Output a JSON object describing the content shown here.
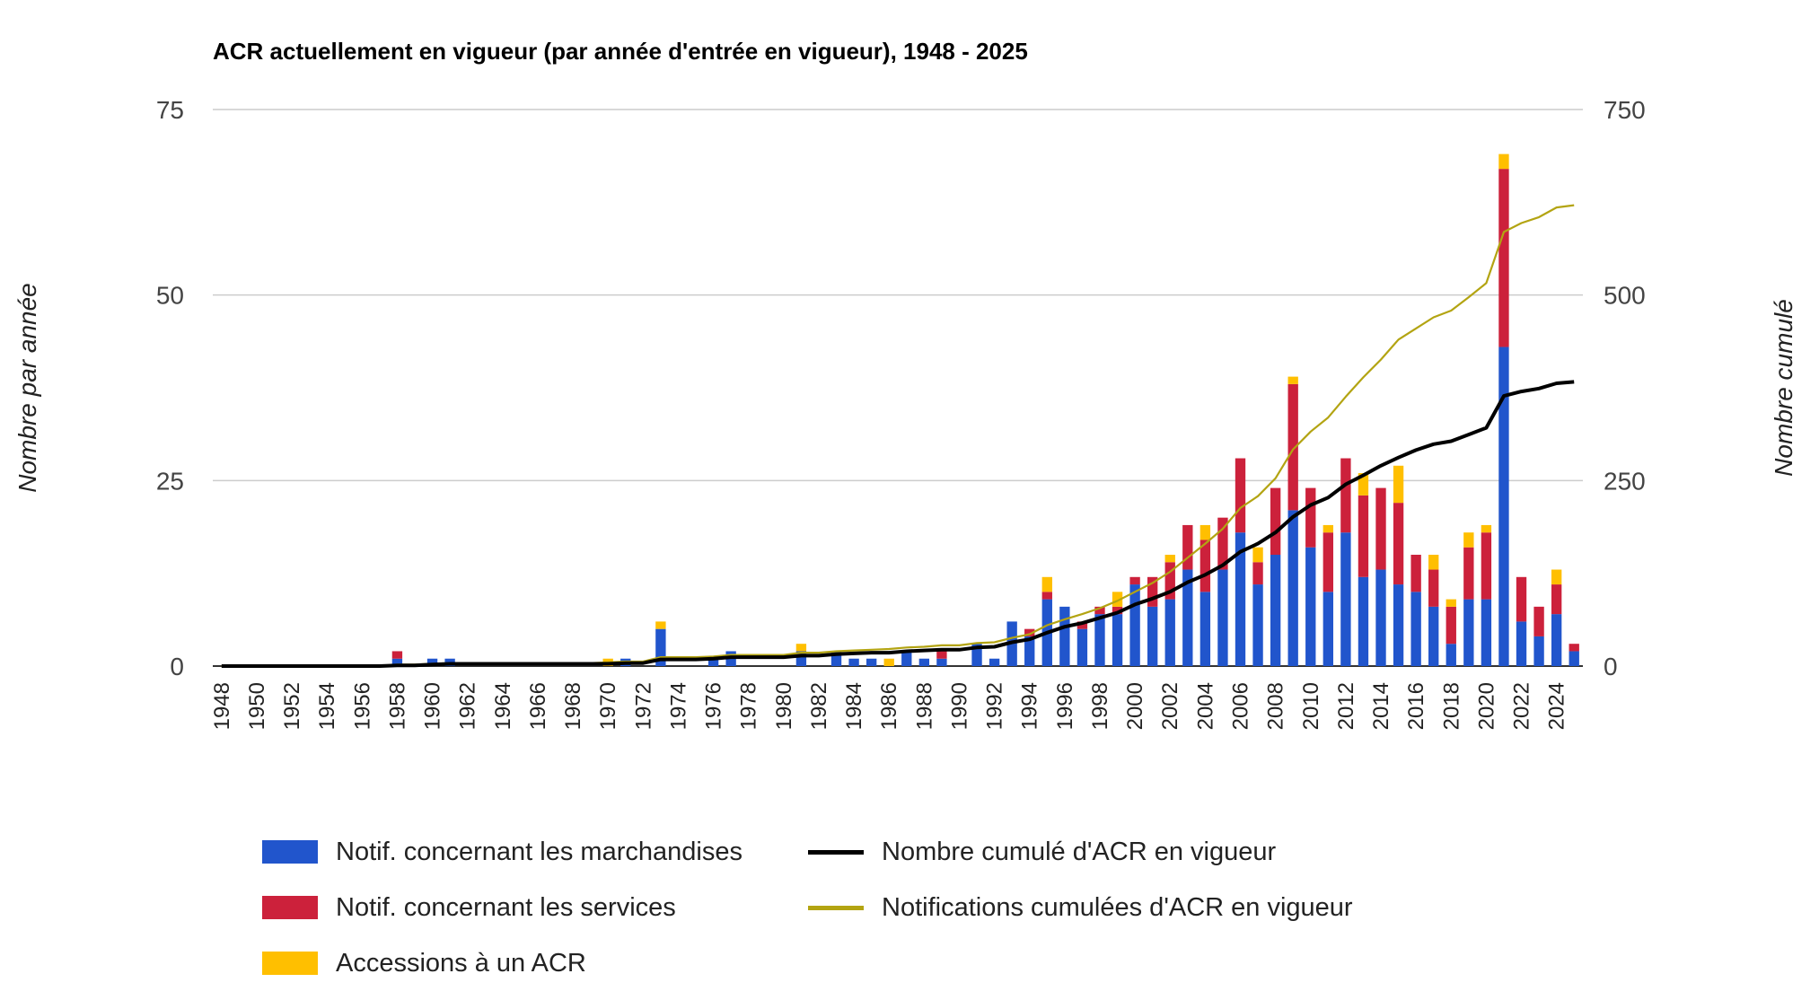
{
  "colors": {
    "goods": "#2155cc",
    "services": "#cc213b",
    "accessions": "#ffbf00",
    "cumulative_rta": "#000000",
    "cumulative_notifications": "#b3a412",
    "grid": "#cccccc"
  },
  "chart_data": {
    "type": "bar",
    "stacked": true,
    "title": "ACR actuellement en vigueur (par année d'entrée en vigueur), 1948 - 2025",
    "ylabel_left": "Nombre par année",
    "ylabel_right": "Nombre cumulé",
    "ylim_left": [
      0,
      75
    ],
    "ylim_right": [
      0,
      750
    ],
    "yticks_left": [
      "0",
      "25",
      "50",
      "75"
    ],
    "yticks_right": [
      "0",
      "250",
      "500",
      "750"
    ],
    "grid": true,
    "legend_position": "bottom",
    "categories": [
      "1948",
      "1949",
      "1950",
      "1951",
      "1952",
      "1953",
      "1954",
      "1955",
      "1956",
      "1957",
      "1958",
      "1959",
      "1960",
      "1961",
      "1962",
      "1963",
      "1964",
      "1965",
      "1966",
      "1967",
      "1968",
      "1969",
      "1970",
      "1971",
      "1972",
      "1973",
      "1974",
      "1975",
      "1976",
      "1977",
      "1978",
      "1979",
      "1980",
      "1981",
      "1982",
      "1983",
      "1984",
      "1985",
      "1986",
      "1987",
      "1988",
      "1989",
      "1990",
      "1991",
      "1992",
      "1993",
      "1994",
      "1995",
      "1996",
      "1997",
      "1998",
      "1999",
      "2000",
      "2001",
      "2002",
      "2003",
      "2004",
      "2005",
      "2006",
      "2007",
      "2008",
      "2009",
      "2010",
      "2011",
      "2012",
      "2013",
      "2014",
      "2015",
      "2016",
      "2017",
      "2018",
      "2019",
      "2020",
      "2021",
      "2022",
      "2023",
      "2024",
      "2025"
    ],
    "xtick_labels": [
      "1948",
      "1950",
      "1952",
      "1954",
      "1956",
      "1958",
      "1960",
      "1962",
      "1964",
      "1966",
      "1968",
      "1970",
      "1972",
      "1974",
      "1976",
      "1978",
      "1980",
      "1982",
      "1984",
      "1986",
      "1988",
      "1990",
      "1992",
      "1994",
      "1996",
      "1998",
      "2000",
      "2002",
      "2004",
      "2006",
      "2008",
      "2010",
      "2012",
      "2014",
      "2016",
      "2018",
      "2020",
      "2022",
      "2024"
    ],
    "series": [
      {
        "name": "Notif. concernant les marchandises",
        "axis": "left",
        "kind": "bar",
        "values": [
          0,
          0,
          0,
          0,
          0,
          0,
          0,
          0,
          0,
          0,
          1,
          0,
          1,
          1,
          0,
          0,
          0,
          0,
          0,
          0,
          0,
          0,
          0,
          1,
          0,
          5,
          0,
          0,
          1,
          2,
          0,
          0,
          0,
          2,
          0,
          2,
          1,
          1,
          0,
          2,
          1,
          1,
          0,
          3,
          1,
          6,
          4,
          9,
          8,
          5,
          7,
          7,
          11,
          8,
          9,
          13,
          10,
          13,
          18,
          11,
          15,
          21,
          16,
          10,
          18,
          12,
          13,
          11,
          10,
          8,
          3,
          9,
          9,
          43,
          6,
          4,
          7,
          2
        ]
      },
      {
        "name": "Notif. concernant les services",
        "axis": "left",
        "kind": "bar",
        "values": [
          0,
          0,
          0,
          0,
          0,
          0,
          0,
          0,
          0,
          0,
          1,
          0,
          0,
          0,
          0,
          0,
          0,
          0,
          0,
          0,
          0,
          0,
          0,
          0,
          0,
          0,
          0,
          0,
          0,
          0,
          0,
          0,
          0,
          0,
          0,
          0,
          0,
          0,
          0,
          0,
          0,
          1,
          0,
          0,
          0,
          0,
          1,
          1,
          0,
          1,
          1,
          1,
          1,
          4,
          5,
          6,
          7,
          7,
          10,
          3,
          9,
          17,
          8,
          8,
          10,
          11,
          11,
          11,
          5,
          5,
          5,
          7,
          9,
          24,
          6,
          4,
          4,
          1
        ]
      },
      {
        "name": "Accessions à un ACR",
        "axis": "left",
        "kind": "bar",
        "values": [
          0,
          0,
          0,
          0,
          0,
          0,
          0,
          0,
          0,
          0,
          0,
          0,
          0,
          0,
          0,
          0,
          0,
          0,
          0,
          0,
          0,
          0,
          1,
          0,
          0,
          1,
          0,
          0,
          0,
          0,
          0,
          0,
          0,
          1,
          0,
          0,
          0,
          0,
          1,
          0,
          0,
          0,
          0,
          0,
          0,
          0,
          0,
          2,
          0,
          0,
          0,
          2,
          0,
          0,
          1,
          0,
          2,
          0,
          0,
          2,
          0,
          1,
          0,
          1,
          0,
          3,
          0,
          5,
          0,
          2,
          1,
          2,
          1,
          2,
          0,
          0,
          2,
          0
        ]
      },
      {
        "name": "Nombre cumulé d'ACR en vigueur",
        "axis": "right",
        "kind": "line",
        "values": [
          0,
          0,
          0,
          0,
          0,
          0,
          0,
          0,
          0,
          0,
          1,
          1,
          2,
          3,
          3,
          3,
          3,
          3,
          3,
          3,
          3,
          3,
          3,
          4,
          4,
          9,
          9,
          9,
          10,
          12,
          12,
          12,
          12,
          14,
          14,
          16,
          17,
          18,
          18,
          20,
          21,
          22,
          22,
          25,
          26,
          32,
          36,
          45,
          53,
          58,
          65,
          72,
          83,
          91,
          100,
          113,
          123,
          136,
          154,
          165,
          180,
          201,
          217,
          227,
          245,
          257,
          270,
          281,
          291,
          299,
          303,
          312,
          321,
          364,
          370,
          374,
          381,
          383
        ]
      },
      {
        "name": "Notifications cumulées d'ACR en vigueur",
        "axis": "right",
        "kind": "line",
        "values": [
          0,
          0,
          0,
          0,
          0,
          0,
          0,
          0,
          0,
          0,
          2,
          2,
          3,
          4,
          4,
          4,
          4,
          4,
          4,
          4,
          4,
          4,
          5,
          6,
          6,
          12,
          12,
          12,
          13,
          15,
          15,
          15,
          15,
          18,
          18,
          20,
          21,
          22,
          23,
          25,
          26,
          28,
          28,
          31,
          32,
          38,
          43,
          55,
          63,
          70,
          78,
          88,
          100,
          112,
          127,
          146,
          165,
          185,
          213,
          229,
          253,
          292,
          316,
          335,
          363,
          389,
          413,
          440,
          455,
          470,
          479,
          497,
          516,
          585,
          597,
          605,
          618,
          621
        ]
      }
    ]
  }
}
